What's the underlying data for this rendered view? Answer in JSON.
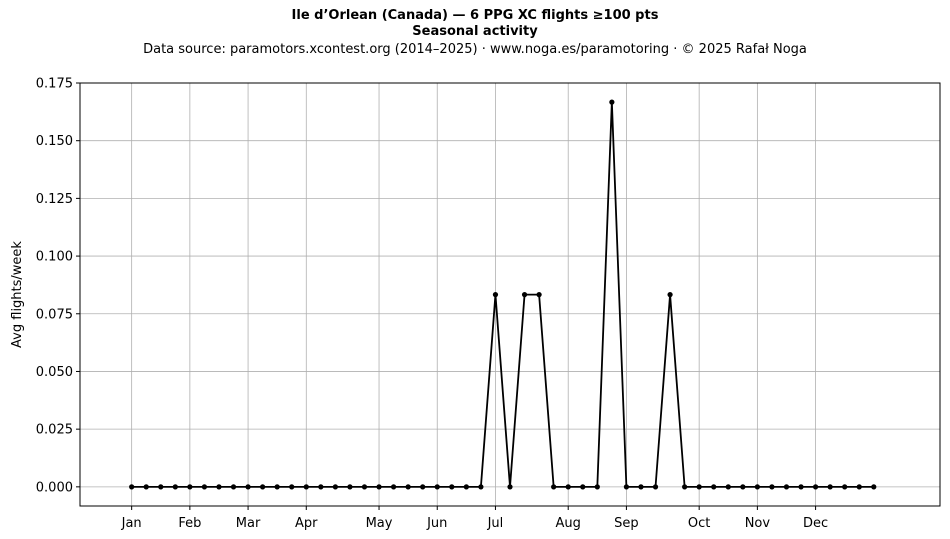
{
  "header": {
    "title": "Ile d’Orlean (Canada)  —  6 PPG XC flights ≥100 pts",
    "subtitle": "Seasonal activity",
    "source": "Data source: paramotors.xcontest.org (2014–2025)  ·  www.noga.es/paramotoring  ·  © 2025 Rafał Noga"
  },
  "chart_data": {
    "type": "line",
    "title": "Ile d’Orlean (Canada)  —  6 PPG XC flights ≥100 pts",
    "subtitle": "Seasonal activity",
    "xlabel": "",
    "ylabel": "Avg flights/week",
    "ylim": [
      -0.0083,
      0.175
    ],
    "yticks": [
      0.0,
      0.025,
      0.05,
      0.075,
      0.1,
      0.125,
      0.15,
      0.175
    ],
    "ytick_labels": [
      "0.000",
      "0.025",
      "0.050",
      "0.075",
      "0.100",
      "0.125",
      "0.150",
      "0.175"
    ],
    "xlim": [
      -2.55,
      56.55
    ],
    "xtick_labels": [
      "Jan",
      "Feb",
      "Mar",
      "Apr",
      "May",
      "Jun",
      "Jul",
      "Aug",
      "Sep",
      "Oct",
      "Nov",
      "Dec"
    ],
    "xtick_weeks": [
      1,
      5,
      9,
      13,
      18,
      22,
      26,
      31,
      35,
      40,
      44,
      48
    ],
    "grid": true,
    "line_color": "#000000",
    "series": [
      {
        "x": [
          1,
          2,
          3,
          4,
          5,
          6,
          7,
          8,
          9,
          10,
          11,
          12,
          13,
          14,
          15,
          16,
          17,
          18,
          19,
          20,
          21,
          22,
          23,
          24,
          25,
          26,
          27,
          28,
          29,
          30,
          31,
          32,
          33,
          34,
          35,
          36,
          37,
          38,
          39,
          40,
          41,
          42,
          43,
          44,
          45,
          46,
          47,
          48,
          49,
          50,
          51,
          52
        ],
        "values": [
          0,
          0,
          0,
          0,
          0,
          0,
          0,
          0,
          0,
          0,
          0,
          0,
          0,
          0,
          0,
          0,
          0,
          0,
          0,
          0,
          0,
          0,
          0,
          0,
          0,
          0.0833,
          0,
          0.0833,
          0.0833,
          0,
          0,
          0,
          0,
          0.1667,
          0,
          0,
          0,
          0.0833,
          0,
          0,
          0,
          0,
          0,
          0,
          0,
          0,
          0,
          0,
          0,
          0,
          0,
          0
        ]
      }
    ]
  }
}
